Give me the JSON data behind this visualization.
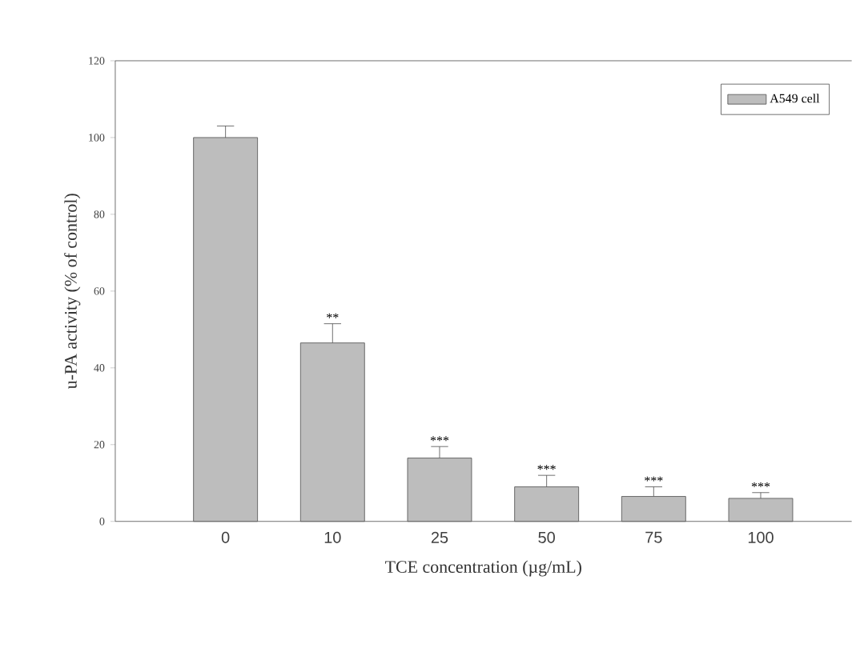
{
  "chart_data": {
    "type": "bar",
    "xlabel": "TCE concentration (µg/mL)",
    "ylabel": "u-PA activity (% of control)",
    "categories": [
      "0",
      "10",
      "25",
      "50",
      "75",
      "100"
    ],
    "series": [
      {
        "name": "A549 cell",
        "color": "#bdbdbd",
        "values": [
          100,
          46.5,
          16.5,
          9,
          6.5,
          6
        ],
        "errors": [
          [
            100,
            103
          ],
          [
            46.5,
            51.5
          ],
          [
            16.5,
            19.5
          ],
          [
            9,
            12
          ],
          [
            6.5,
            9
          ],
          [
            6,
            7.5
          ]
        ]
      }
    ],
    "ylim": [
      0,
      120
    ],
    "yticks": [
      0,
      20,
      40,
      60,
      80,
      100,
      120
    ],
    "legend": "top right",
    "annotations": [
      {
        "text": "**",
        "x": "10",
        "y": 51.5
      },
      {
        "text": "***",
        "x": "25",
        "y": 19.5
      },
      {
        "text": "***",
        "x": "50",
        "y": 12
      },
      {
        "text": "***",
        "x": "75",
        "y": 9
      },
      {
        "text": "***",
        "x": "100",
        "y": 7.5
      }
    ]
  }
}
